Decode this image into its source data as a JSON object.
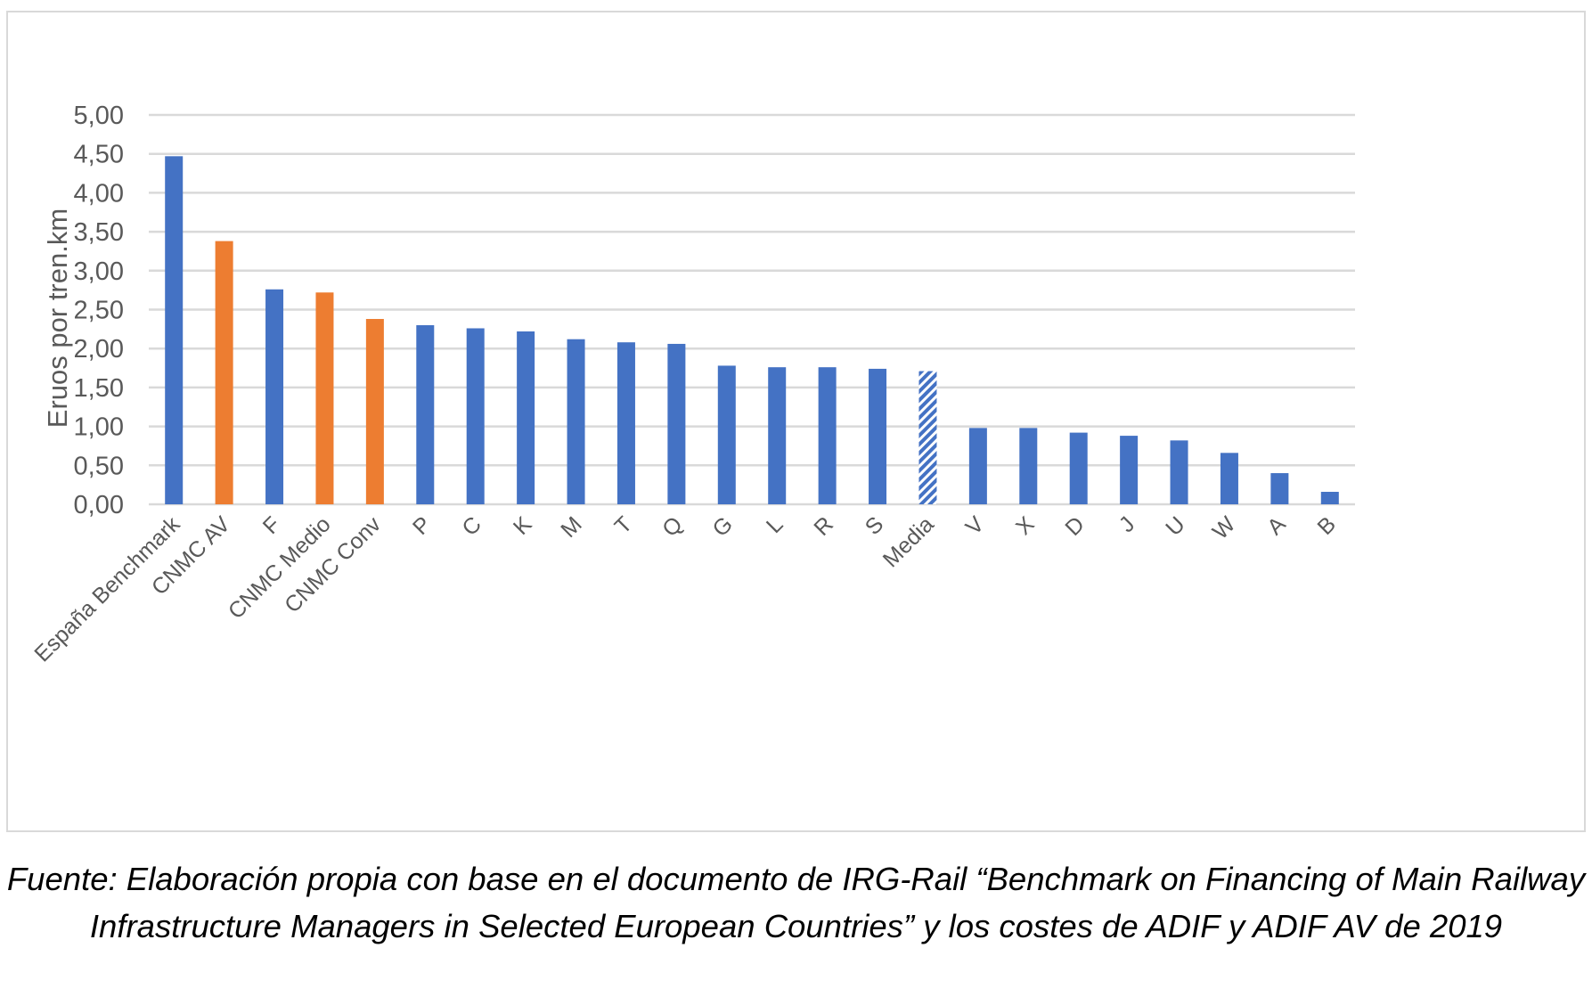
{
  "chart_data": {
    "type": "bar",
    "ylabel": "Eruos por tren.km",
    "ylim": [
      0,
      5
    ],
    "ytick_step": 0.5,
    "ytick_labels": [
      "0,00",
      "0,50",
      "1,00",
      "1,50",
      "2,00",
      "2,50",
      "3,00",
      "3,50",
      "4,00",
      "4,50",
      "5,00"
    ],
    "grid": true,
    "legend": "none",
    "categories": [
      "España Benchmark",
      "CNMC AV",
      "F",
      "CNMC Medio",
      "CNMC Conv",
      "P",
      "C",
      "K",
      "M",
      "T",
      "Q",
      "G",
      "L",
      "R",
      "S",
      "Media",
      "V",
      "X",
      "D",
      "J",
      "U",
      "W",
      "A",
      "B"
    ],
    "values": [
      4.47,
      3.38,
      2.76,
      2.72,
      2.38,
      2.3,
      2.26,
      2.22,
      2.12,
      2.08,
      2.06,
      1.78,
      1.76,
      1.76,
      1.74,
      1.71,
      0.98,
      0.98,
      0.92,
      0.88,
      0.82,
      0.66,
      0.4,
      0.16
    ],
    "bar_styles": [
      "blue",
      "orange",
      "blue",
      "orange",
      "orange",
      "blue",
      "blue",
      "blue",
      "blue",
      "blue",
      "blue",
      "blue",
      "blue",
      "blue",
      "blue",
      "hatched",
      "blue",
      "blue",
      "blue",
      "blue",
      "blue",
      "blue",
      "blue",
      "blue"
    ],
    "colors": {
      "blue": "#4472c4",
      "orange": "#ed7d31",
      "grid": "#d9d9d9",
      "text": "#595959"
    }
  },
  "caption": "Fuente: Elaboración propia con base en el documento de IRG-Rail “Benchmark on Financing of Main Railway Infrastructure Managers in Selected European Countries” y los costes de ADIF y ADIF AV de 2019"
}
